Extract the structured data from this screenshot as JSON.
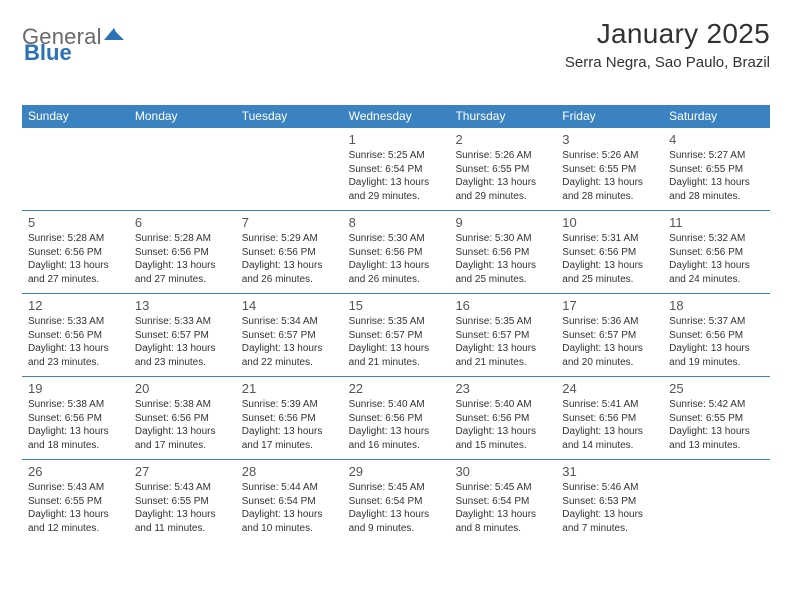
{
  "brand": {
    "part1": "General",
    "part2": "Blue"
  },
  "colors": {
    "header_bg": "#3b83c0",
    "header_text": "#ffffff",
    "rule": "#3b83c0",
    "brand_gray": "#6a6a6a",
    "brand_blue": "#2a72b5",
    "text": "#333333",
    "daynum": "#555555",
    "background": "#ffffff"
  },
  "header": {
    "month_title": "January 2025",
    "location": "Serra Negra, Sao Paulo, Brazil"
  },
  "weekdays": [
    "Sunday",
    "Monday",
    "Tuesday",
    "Wednesday",
    "Thursday",
    "Friday",
    "Saturday"
  ],
  "weeks": [
    [
      {
        "num": "",
        "lines": []
      },
      {
        "num": "",
        "lines": []
      },
      {
        "num": "",
        "lines": []
      },
      {
        "num": "1",
        "lines": [
          "Sunrise: 5:25 AM",
          "Sunset: 6:54 PM",
          "Daylight: 13 hours",
          "and 29 minutes."
        ]
      },
      {
        "num": "2",
        "lines": [
          "Sunrise: 5:26 AM",
          "Sunset: 6:55 PM",
          "Daylight: 13 hours",
          "and 29 minutes."
        ]
      },
      {
        "num": "3",
        "lines": [
          "Sunrise: 5:26 AM",
          "Sunset: 6:55 PM",
          "Daylight: 13 hours",
          "and 28 minutes."
        ]
      },
      {
        "num": "4",
        "lines": [
          "Sunrise: 5:27 AM",
          "Sunset: 6:55 PM",
          "Daylight: 13 hours",
          "and 28 minutes."
        ]
      }
    ],
    [
      {
        "num": "5",
        "lines": [
          "Sunrise: 5:28 AM",
          "Sunset: 6:56 PM",
          "Daylight: 13 hours",
          "and 27 minutes."
        ]
      },
      {
        "num": "6",
        "lines": [
          "Sunrise: 5:28 AM",
          "Sunset: 6:56 PM",
          "Daylight: 13 hours",
          "and 27 minutes."
        ]
      },
      {
        "num": "7",
        "lines": [
          "Sunrise: 5:29 AM",
          "Sunset: 6:56 PM",
          "Daylight: 13 hours",
          "and 26 minutes."
        ]
      },
      {
        "num": "8",
        "lines": [
          "Sunrise: 5:30 AM",
          "Sunset: 6:56 PM",
          "Daylight: 13 hours",
          "and 26 minutes."
        ]
      },
      {
        "num": "9",
        "lines": [
          "Sunrise: 5:30 AM",
          "Sunset: 6:56 PM",
          "Daylight: 13 hours",
          "and 25 minutes."
        ]
      },
      {
        "num": "10",
        "lines": [
          "Sunrise: 5:31 AM",
          "Sunset: 6:56 PM",
          "Daylight: 13 hours",
          "and 25 minutes."
        ]
      },
      {
        "num": "11",
        "lines": [
          "Sunrise: 5:32 AM",
          "Sunset: 6:56 PM",
          "Daylight: 13 hours",
          "and 24 minutes."
        ]
      }
    ],
    [
      {
        "num": "12",
        "lines": [
          "Sunrise: 5:33 AM",
          "Sunset: 6:56 PM",
          "Daylight: 13 hours",
          "and 23 minutes."
        ]
      },
      {
        "num": "13",
        "lines": [
          "Sunrise: 5:33 AM",
          "Sunset: 6:57 PM",
          "Daylight: 13 hours",
          "and 23 minutes."
        ]
      },
      {
        "num": "14",
        "lines": [
          "Sunrise: 5:34 AM",
          "Sunset: 6:57 PM",
          "Daylight: 13 hours",
          "and 22 minutes."
        ]
      },
      {
        "num": "15",
        "lines": [
          "Sunrise: 5:35 AM",
          "Sunset: 6:57 PM",
          "Daylight: 13 hours",
          "and 21 minutes."
        ]
      },
      {
        "num": "16",
        "lines": [
          "Sunrise: 5:35 AM",
          "Sunset: 6:57 PM",
          "Daylight: 13 hours",
          "and 21 minutes."
        ]
      },
      {
        "num": "17",
        "lines": [
          "Sunrise: 5:36 AM",
          "Sunset: 6:57 PM",
          "Daylight: 13 hours",
          "and 20 minutes."
        ]
      },
      {
        "num": "18",
        "lines": [
          "Sunrise: 5:37 AM",
          "Sunset: 6:56 PM",
          "Daylight: 13 hours",
          "and 19 minutes."
        ]
      }
    ],
    [
      {
        "num": "19",
        "lines": [
          "Sunrise: 5:38 AM",
          "Sunset: 6:56 PM",
          "Daylight: 13 hours",
          "and 18 minutes."
        ]
      },
      {
        "num": "20",
        "lines": [
          "Sunrise: 5:38 AM",
          "Sunset: 6:56 PM",
          "Daylight: 13 hours",
          "and 17 minutes."
        ]
      },
      {
        "num": "21",
        "lines": [
          "Sunrise: 5:39 AM",
          "Sunset: 6:56 PM",
          "Daylight: 13 hours",
          "and 17 minutes."
        ]
      },
      {
        "num": "22",
        "lines": [
          "Sunrise: 5:40 AM",
          "Sunset: 6:56 PM",
          "Daylight: 13 hours",
          "and 16 minutes."
        ]
      },
      {
        "num": "23",
        "lines": [
          "Sunrise: 5:40 AM",
          "Sunset: 6:56 PM",
          "Daylight: 13 hours",
          "and 15 minutes."
        ]
      },
      {
        "num": "24",
        "lines": [
          "Sunrise: 5:41 AM",
          "Sunset: 6:56 PM",
          "Daylight: 13 hours",
          "and 14 minutes."
        ]
      },
      {
        "num": "25",
        "lines": [
          "Sunrise: 5:42 AM",
          "Sunset: 6:55 PM",
          "Daylight: 13 hours",
          "and 13 minutes."
        ]
      }
    ],
    [
      {
        "num": "26",
        "lines": [
          "Sunrise: 5:43 AM",
          "Sunset: 6:55 PM",
          "Daylight: 13 hours",
          "and 12 minutes."
        ]
      },
      {
        "num": "27",
        "lines": [
          "Sunrise: 5:43 AM",
          "Sunset: 6:55 PM",
          "Daylight: 13 hours",
          "and 11 minutes."
        ]
      },
      {
        "num": "28",
        "lines": [
          "Sunrise: 5:44 AM",
          "Sunset: 6:54 PM",
          "Daylight: 13 hours",
          "and 10 minutes."
        ]
      },
      {
        "num": "29",
        "lines": [
          "Sunrise: 5:45 AM",
          "Sunset: 6:54 PM",
          "Daylight: 13 hours",
          "and 9 minutes."
        ]
      },
      {
        "num": "30",
        "lines": [
          "Sunrise: 5:45 AM",
          "Sunset: 6:54 PM",
          "Daylight: 13 hours",
          "and 8 minutes."
        ]
      },
      {
        "num": "31",
        "lines": [
          "Sunrise: 5:46 AM",
          "Sunset: 6:53 PM",
          "Daylight: 13 hours",
          "and 7 minutes."
        ]
      },
      {
        "num": "",
        "lines": []
      }
    ]
  ]
}
